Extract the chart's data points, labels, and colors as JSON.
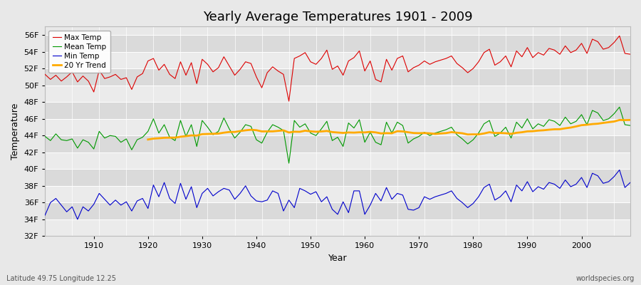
{
  "title": "Yearly Average Temperatures 1901 - 2009",
  "xlabel": "Year",
  "ylabel": "Temperature",
  "footnote_left": "Latitude 49.75 Longitude 12.25",
  "footnote_right": "worldspecies.org",
  "legend": [
    "Max Temp",
    "Mean Temp",
    "Min Temp",
    "20 Yr Trend"
  ],
  "colors": [
    "#dd0000",
    "#009900",
    "#0000cc",
    "#ffaa00"
  ],
  "years": [
    1901,
    1902,
    1903,
    1904,
    1905,
    1906,
    1907,
    1908,
    1909,
    1910,
    1911,
    1912,
    1913,
    1914,
    1915,
    1916,
    1917,
    1918,
    1919,
    1920,
    1921,
    1922,
    1923,
    1924,
    1925,
    1926,
    1927,
    1928,
    1929,
    1930,
    1931,
    1932,
    1933,
    1934,
    1935,
    1936,
    1937,
    1938,
    1939,
    1940,
    1941,
    1942,
    1943,
    1944,
    1945,
    1946,
    1947,
    1948,
    1949,
    1950,
    1951,
    1952,
    1953,
    1954,
    1955,
    1956,
    1957,
    1958,
    1959,
    1960,
    1961,
    1962,
    1963,
    1964,
    1965,
    1966,
    1967,
    1968,
    1969,
    1970,
    1971,
    1972,
    1973,
    1974,
    1975,
    1976,
    1977,
    1978,
    1979,
    1980,
    1981,
    1982,
    1983,
    1984,
    1985,
    1986,
    1987,
    1988,
    1989,
    1990,
    1991,
    1992,
    1993,
    1994,
    1995,
    1996,
    1997,
    1998,
    1999,
    2000,
    2001,
    2002,
    2003,
    2004,
    2005,
    2006,
    2007,
    2008,
    2009
  ],
  "max_temp": [
    51.3,
    50.7,
    51.2,
    50.5,
    51.0,
    51.6,
    50.4,
    51.1,
    50.5,
    49.2,
    51.8,
    50.8,
    51.0,
    51.3,
    50.7,
    50.9,
    49.5,
    51.0,
    51.4,
    52.9,
    53.2,
    51.8,
    52.5,
    51.3,
    50.8,
    52.8,
    51.2,
    52.7,
    50.2,
    53.1,
    52.5,
    51.6,
    52.1,
    53.4,
    52.3,
    51.2,
    51.9,
    52.8,
    52.6,
    51.0,
    49.7,
    51.5,
    52.2,
    51.7,
    51.3,
    48.1,
    53.2,
    53.5,
    53.9,
    52.8,
    52.5,
    53.2,
    54.2,
    51.9,
    52.3,
    51.2,
    52.9,
    53.3,
    54.1,
    51.7,
    52.9,
    50.7,
    50.4,
    53.1,
    51.8,
    53.2,
    53.5,
    51.6,
    52.1,
    52.4,
    52.9,
    52.5,
    52.8,
    53.0,
    53.2,
    53.5,
    52.6,
    52.1,
    51.5,
    52.0,
    52.8,
    53.9,
    54.3,
    52.4,
    52.8,
    53.5,
    52.2,
    54.1,
    53.4,
    54.5,
    53.3,
    53.9,
    53.6,
    54.4,
    54.2,
    53.7,
    54.7,
    53.9,
    54.2,
    55.0,
    53.8,
    55.5,
    55.2,
    54.3,
    54.5,
    55.1,
    55.9,
    53.8,
    53.7
  ],
  "mean_temp": [
    43.9,
    43.4,
    44.2,
    43.5,
    43.4,
    43.6,
    42.5,
    43.5,
    43.2,
    42.4,
    44.5,
    43.7,
    44.0,
    43.9,
    43.2,
    43.6,
    42.3,
    43.5,
    43.8,
    44.5,
    46.0,
    44.3,
    45.3,
    43.8,
    43.4,
    45.8,
    43.9,
    45.3,
    42.7,
    45.8,
    45.0,
    44.1,
    44.5,
    46.1,
    44.8,
    43.7,
    44.4,
    45.3,
    45.1,
    43.5,
    43.1,
    44.4,
    45.3,
    45.0,
    44.6,
    40.7,
    45.8,
    45.0,
    45.4,
    44.3,
    44.0,
    44.8,
    45.7,
    43.4,
    43.8,
    42.7,
    45.5,
    44.9,
    45.9,
    43.2,
    44.4,
    43.2,
    42.9,
    45.6,
    44.3,
    45.6,
    45.2,
    43.1,
    43.6,
    43.9,
    44.4,
    44.0,
    44.3,
    44.5,
    44.7,
    45.0,
    44.1,
    43.6,
    43.0,
    43.5,
    44.3,
    45.4,
    45.8,
    43.9,
    44.3,
    45.0,
    43.7,
    45.6,
    44.9,
    46.0,
    44.8,
    45.4,
    45.1,
    45.9,
    45.7,
    45.2,
    46.2,
    45.4,
    45.7,
    46.5,
    45.3,
    47.0,
    46.7,
    45.8,
    46.0,
    46.6,
    47.4,
    45.3,
    45.2
  ],
  "min_temp": [
    34.5,
    36.0,
    36.5,
    35.7,
    34.9,
    35.5,
    34.0,
    35.5,
    35.0,
    35.8,
    37.1,
    36.4,
    35.7,
    36.3,
    35.7,
    36.1,
    35.0,
    36.2,
    36.5,
    35.3,
    38.1,
    36.7,
    38.4,
    36.5,
    35.9,
    38.3,
    36.4,
    37.9,
    35.4,
    37.1,
    37.7,
    36.8,
    37.3,
    37.7,
    37.5,
    36.4,
    37.1,
    38.0,
    36.8,
    36.2,
    36.1,
    36.3,
    37.4,
    37.1,
    35.0,
    36.3,
    35.4,
    37.7,
    37.4,
    37.0,
    37.3,
    36.1,
    36.7,
    35.2,
    34.6,
    36.1,
    34.8,
    37.4,
    37.4,
    34.6,
    35.7,
    37.1,
    36.2,
    37.8,
    36.4,
    37.1,
    36.9,
    35.2,
    35.1,
    35.4,
    36.7,
    36.4,
    36.7,
    36.9,
    37.1,
    37.4,
    36.5,
    36.0,
    35.4,
    35.9,
    36.7,
    37.8,
    38.2,
    36.3,
    36.7,
    37.4,
    36.1,
    38.1,
    37.4,
    38.5,
    37.3,
    37.9,
    37.6,
    38.4,
    38.2,
    37.7,
    38.7,
    37.9,
    38.2,
    39.0,
    37.8,
    39.5,
    39.2,
    38.3,
    38.5,
    39.1,
    39.9,
    37.8,
    38.4
  ],
  "ylim": [
    32,
    57
  ],
  "yticks": [
    32,
    34,
    36,
    38,
    40,
    42,
    44,
    46,
    48,
    50,
    52,
    54,
    56
  ],
  "ytick_labels": [
    "32F",
    "34F",
    "36F",
    "38F",
    "40F",
    "42F",
    "44F",
    "46F",
    "48F",
    "50F",
    "52F",
    "54F",
    "56F"
  ],
  "xlim": [
    1901,
    2009
  ],
  "xticks": [
    1910,
    1920,
    1930,
    1940,
    1950,
    1960,
    1970,
    1980,
    1990,
    2000
  ],
  "bg_color": "#e8e8e8",
  "plot_bg": "#e8e8e8",
  "band_light": "#ebebeb",
  "band_dark": "#dadada",
  "grid_color": "#ffffff",
  "trend_window": 20
}
